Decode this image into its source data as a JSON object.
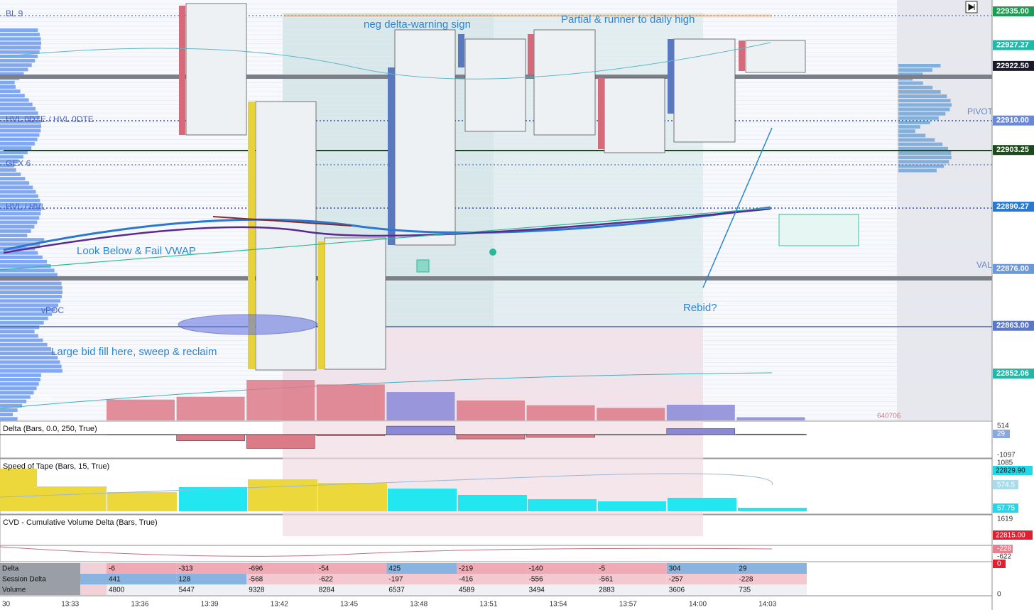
{
  "annotations": [
    "neg delta-warning sign",
    "Partial & runner to daily high",
    "Look Below & Fail VWAP",
    "Large bid fill here, sweep & reclaim",
    "Rebid?"
  ],
  "levels": [
    "BL 9",
    "HVL 0DTE / HVL 0DTE",
    "GEX 6",
    "HVL / HVL",
    "vPOC",
    "VAL",
    "PIVOT",
    "VAL"
  ],
  "volume_total": "640706",
  "price_axis": [
    {
      "value": 22935,
      "label": "22935.00",
      "color": "#1a9e50"
    },
    {
      "value": 22927.27,
      "label": "22927.27",
      "color": "#20b8a8"
    },
    {
      "value": 22922.5,
      "label": "22922.50",
      "color": "#1a1a2a"
    },
    {
      "value": 22910,
      "label": "22910.00",
      "color": "#6a88d8"
    },
    {
      "value": 22903.25,
      "label": "22903.25",
      "color": "#1d4a1d"
    },
    {
      "value": 22890.27,
      "label": "22890.27",
      "color": "#2a78d0"
    },
    {
      "value": 22876,
      "label": "22876.00",
      "color": "#6a98d8"
    },
    {
      "value": 22863,
      "label": "22863.00",
      "color": "#5a78c8"
    },
    {
      "value": 22852.06,
      "label": "22852.06",
      "color": "#20b8a8"
    }
  ],
  "panels": [
    "Delta (Bars, 0.0, 250, True)",
    "Speed of Tape (Bars, 15, True)",
    "CVD - Cumulative Volume Delta (Bars, True)"
  ],
  "pane_axis": [
    "514",
    "29",
    "-1097",
    "1085",
    "22829.90",
    "574.5",
    "57.75",
    "1619",
    "22815.00",
    "-228",
    "-622",
    "0",
    "0"
  ],
  "table": {
    "row_labels": [
      "Delta",
      "Session Delta",
      "Volume"
    ],
    "rows": [
      [
        -6,
        -313,
        -696,
        -54,
        425,
        -219,
        -140,
        -5,
        304,
        29
      ],
      [
        441,
        128,
        -568,
        -622,
        -197,
        -416,
        -556,
        -561,
        -257,
        -228
      ],
      [
        4800,
        5447,
        9328,
        8284,
        6537,
        4589,
        3494,
        2883,
        3606,
        735
      ]
    ]
  },
  "time_axis": [
    "30",
    "13:33",
    "13:36",
    "13:39",
    "13:42",
    "13:45",
    "13:48",
    "13:51",
    "13:54",
    "13:57",
    "14:00",
    "14:03"
  ]
}
